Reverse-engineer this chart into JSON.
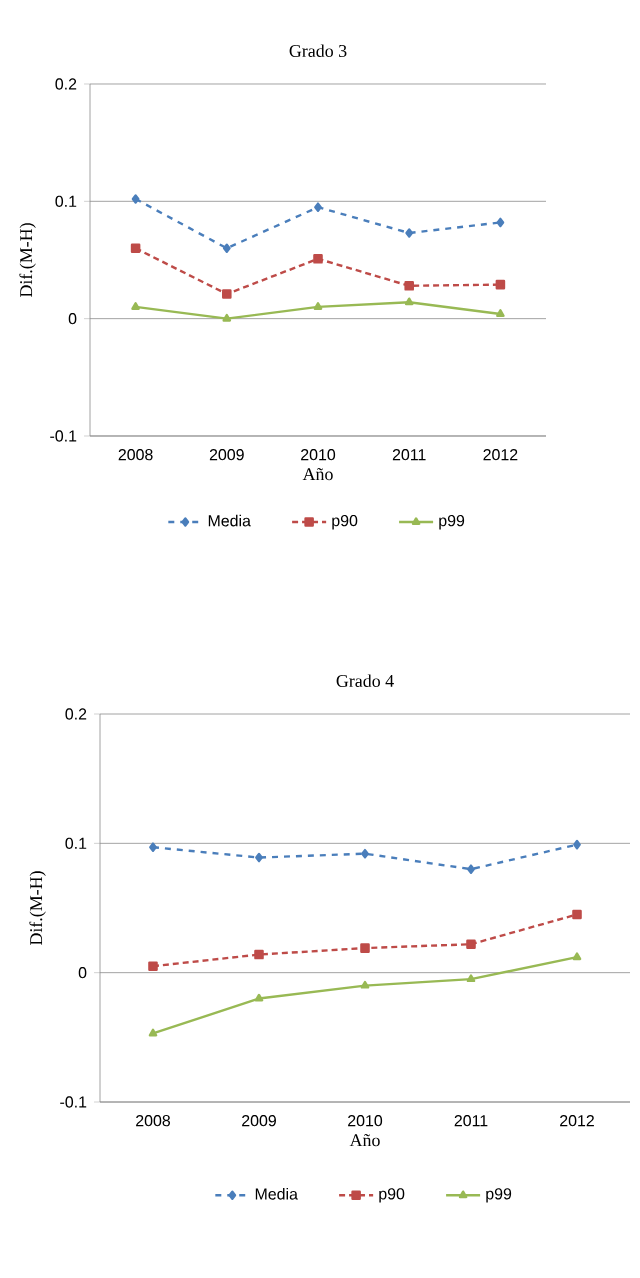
{
  "chart_data": [
    {
      "type": "line",
      "title": "Grado 3",
      "xlabel": "Año",
      "ylabel": "Dif.(M-H)",
      "categories": [
        "2008",
        "2009",
        "2010",
        "2011",
        "2012"
      ],
      "ylim": [
        -0.1,
        0.2
      ],
      "yticks": [
        -0.1,
        0,
        0.1,
        0.2
      ],
      "grid": "y",
      "legend": "bottom",
      "series": [
        {
          "name": "Media",
          "color": "#4a7ebb",
          "marker": "diamond",
          "line_style": "dashed",
          "values": [
            0.102,
            0.06,
            0.095,
            0.073,
            0.082
          ]
        },
        {
          "name": "p90",
          "color": "#be4b48",
          "marker": "square",
          "line_style": "dotted",
          "values": [
            0.06,
            0.021,
            0.051,
            0.028,
            0.029
          ]
        },
        {
          "name": "p99",
          "color": "#98b954",
          "marker": "triangle",
          "line_style": "solid",
          "values": [
            0.01,
            0.0,
            0.01,
            0.014,
            0.004
          ]
        }
      ]
    },
    {
      "type": "line",
      "title": "Grado 4",
      "xlabel": "Año",
      "ylabel": "Dif.(M-H)",
      "categories": [
        "2008",
        "2009",
        "2010",
        "2011",
        "2012"
      ],
      "ylim": [
        -0.1,
        0.2
      ],
      "yticks": [
        -0.1,
        0,
        0.1,
        0.2
      ],
      "grid": "y",
      "legend": "bottom",
      "series": [
        {
          "name": "Media",
          "color": "#4a7ebb",
          "marker": "diamond",
          "line_style": "dashed",
          "values": [
            0.097,
            0.089,
            0.092,
            0.08,
            0.099
          ]
        },
        {
          "name": "p90",
          "color": "#be4b48",
          "marker": "square",
          "line_style": "dotted",
          "values": [
            0.005,
            0.014,
            0.019,
            0.022,
            0.045
          ]
        },
        {
          "name": "p99",
          "color": "#98b954",
          "marker": "triangle",
          "line_style": "solid",
          "values": [
            -0.047,
            -0.02,
            -0.01,
            -0.005,
            0.012
          ]
        }
      ]
    }
  ]
}
